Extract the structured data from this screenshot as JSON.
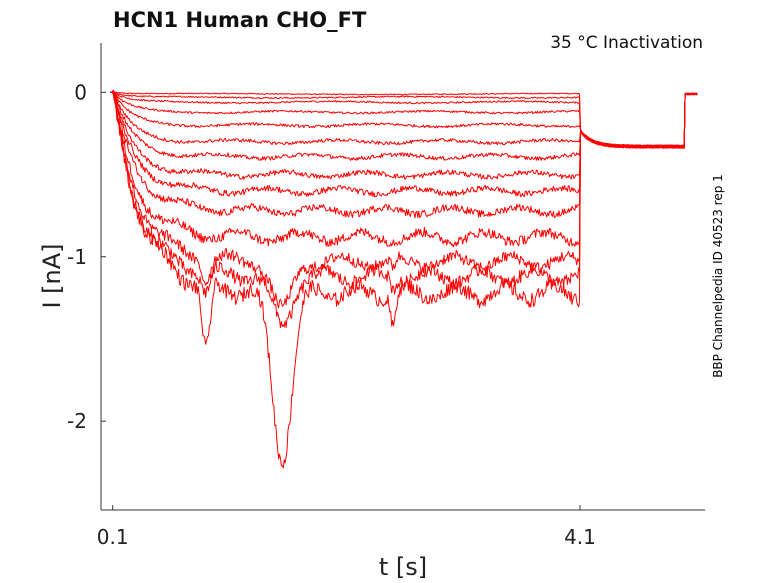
{
  "chart_data": {
    "type": "line",
    "title": "HCN1  Human  CHO_FT",
    "condition": "35 °C  Inactivation",
    "xlabel": "t [s]",
    "ylabel": "I [nA]",
    "side_label": "BBP Channelpedia ID 40523 rep 1",
    "x_ticks": [
      {
        "value": 0.1,
        "label": "0.1"
      },
      {
        "value": 4.1,
        "label": "4.1"
      }
    ],
    "y_ticks": [
      {
        "value": 0,
        "label": "0"
      },
      {
        "value": -1,
        "label": "-1"
      },
      {
        "value": -2,
        "label": "-2"
      }
    ],
    "xlim": [
      0.0,
      5.17
    ],
    "ylim": [
      -2.54,
      0.3
    ],
    "grid": false,
    "legend": "none",
    "color": "#ff0000",
    "protocol": {
      "step_start_s": 0.1,
      "step_end_s": 4.1,
      "tail_end_s": 5.0,
      "tail_current_nA": -0.33
    },
    "series": [
      {
        "steady_nA": -0.01,
        "tau_s": 0.1,
        "noise_nA": 0.003
      },
      {
        "steady_nA": -0.03,
        "tau_s": 0.1,
        "noise_nA": 0.004
      },
      {
        "steady_nA": -0.06,
        "tau_s": 0.12,
        "noise_nA": 0.005
      },
      {
        "steady_nA": -0.12,
        "tau_s": 0.14,
        "noise_nA": 0.006
      },
      {
        "steady_nA": -0.2,
        "tau_s": 0.15,
        "noise_nA": 0.008
      },
      {
        "steady_nA": -0.3,
        "tau_s": 0.16,
        "noise_nA": 0.01
      },
      {
        "steady_nA": -0.39,
        "tau_s": 0.17,
        "noise_nA": 0.012
      },
      {
        "steady_nA": -0.5,
        "tau_s": 0.18,
        "noise_nA": 0.015
      },
      {
        "steady_nA": -0.6,
        "tau_s": 0.19,
        "noise_nA": 0.018
      },
      {
        "steady_nA": -0.72,
        "tau_s": 0.2,
        "noise_nA": 0.022
      },
      {
        "steady_nA": -0.88,
        "tau_s": 0.2,
        "noise_nA": 0.03
      },
      {
        "steady_nA": -1.03,
        "tau_s": 0.22,
        "noise_nA": 0.035
      },
      {
        "steady_nA": -1.12,
        "tau_s": 0.22,
        "noise_nA": 0.04
      },
      {
        "steady_nA": -1.22,
        "tau_s": 0.25,
        "noise_nA": 0.045
      }
    ],
    "artifacts": [
      {
        "t_s": 0.9,
        "depth_nA": -0.42,
        "width_s": 0.05
      },
      {
        "t_s": 1.55,
        "depth_nA": -1.0,
        "width_s": 0.12
      },
      {
        "t_s": 2.5,
        "depth_nA": -0.2,
        "width_s": 0.03
      }
    ]
  }
}
